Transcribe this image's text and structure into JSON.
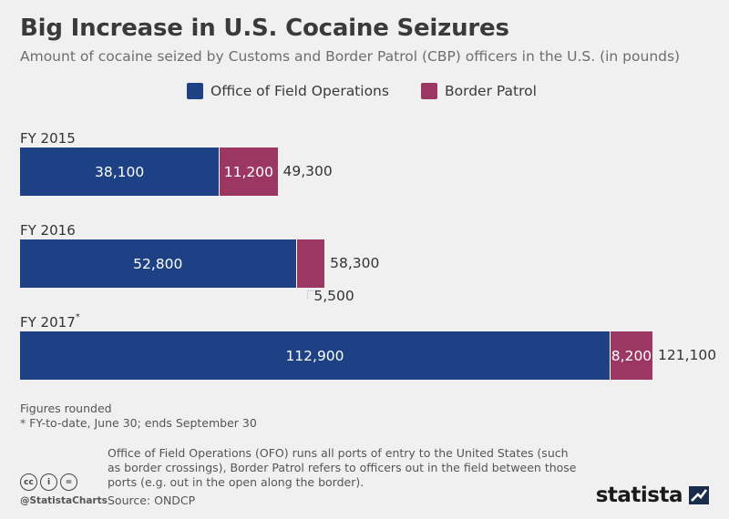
{
  "title": "Big Increase in U.S. Cocaine Seizures",
  "subtitle": "Amount of cocaine seized by Customs and Border Patrol (CBP) officers in the U.S. (in pounds)",
  "chart_data": {
    "type": "bar",
    "orientation": "horizontal",
    "stacked": true,
    "categories": [
      "FY 2015",
      "FY 2016",
      "FY 2017"
    ],
    "category_labels": [
      {
        "text": "FY 2015",
        "marker": ""
      },
      {
        "text": "FY 2016",
        "marker": ""
      },
      {
        "text": "FY 2017",
        "marker": "*"
      }
    ],
    "series": [
      {
        "name": "Office of Field Operations",
        "color": "#1d4184",
        "values": [
          38100,
          52800,
          112900
        ],
        "labels": [
          "38,100",
          "52,800",
          "112,900"
        ]
      },
      {
        "name": "Border Patrol",
        "color": "#9b3762",
        "values": [
          11200,
          5500,
          8200
        ],
        "labels": [
          "11,200",
          "5,500",
          "8,200"
        ]
      }
    ],
    "totals": [
      49300,
      58300,
      121100
    ],
    "total_labels": [
      "49,300",
      "58,300",
      "121,100"
    ],
    "xlim": [
      0,
      121100
    ],
    "grid": false,
    "legend_position": "top-center"
  },
  "notes": {
    "line1": "Figures rounded",
    "line2": "* FY-to-date, June 30; ends September 30"
  },
  "ofo_note": "Office of Field Operations (OFO) runs all ports of entry to the United States (such as border crossings), Border Patrol refers to officers out in the field between those ports (e.g. out in the open along the border).",
  "source": "Source: ONDCP",
  "handle": "@StatistaCharts",
  "brand": "statista",
  "icons": [
    "creative-commons-icon",
    "attribution-icon",
    "no-derivatives-icon"
  ],
  "icon_glyphs": [
    "cc",
    "i",
    "="
  ]
}
